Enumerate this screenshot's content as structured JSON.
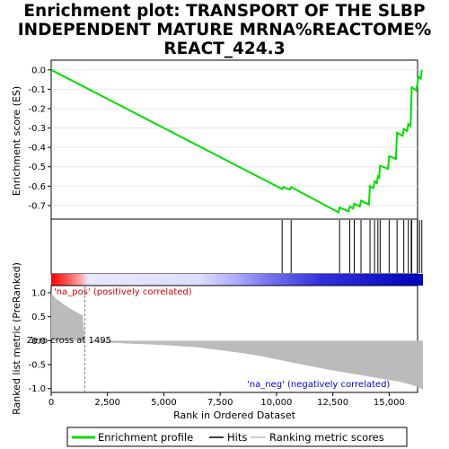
{
  "title_lines": [
    "Enrichment plot: TRANSPORT OF THE SLBP",
    "INDEPENDENT MATURE MRNA%REACTOME%",
    "REACT_424.3"
  ],
  "colors": {
    "es_line": "#00dd00",
    "hits": "#000000",
    "metric_fill": "#bbbbbb",
    "pos_text": "#cc0000",
    "neg_text": "#0000cc",
    "zero_line": "#888888"
  },
  "chart_data": {
    "type": "line",
    "title": "Enrichment plot: TRANSPORT OF THE SLBP INDEPENDENT MATURE MRNA%REACTOME% REACT_424.3",
    "xlabel": "Rank in Ordered Dataset",
    "xlim": [
      0,
      16500
    ],
    "x_ticks": [
      0,
      2500,
      5000,
      7500,
      10000,
      12500,
      15000
    ],
    "x_tick_labels": [
      "0",
      "2,500",
      "5,000",
      "7,500",
      "10,000",
      "12,500",
      "15,000"
    ],
    "es_panel": {
      "ylabel": "Enrichment score (ES)",
      "ylim": [
        -0.77,
        0.05
      ],
      "y_ticks": [
        0.0,
        -0.1,
        -0.2,
        -0.3,
        -0.4,
        -0.5,
        -0.6,
        -0.7
      ],
      "y_tick_labels": [
        "0.0",
        "-0.1",
        "-0.2",
        "-0.3",
        "-0.4",
        "-0.5",
        "-0.6",
        "-0.7"
      ],
      "points": [
        [
          0,
          0.0
        ],
        [
          10250,
          -0.615
        ],
        [
          10300,
          -0.605
        ],
        [
          10600,
          -0.617
        ],
        [
          10650,
          -0.605
        ],
        [
          12750,
          -0.735
        ],
        [
          12800,
          -0.71
        ],
        [
          13200,
          -0.73
        ],
        [
          13250,
          -0.705
        ],
        [
          13400,
          -0.715
        ],
        [
          13450,
          -0.69
        ],
        [
          13700,
          -0.705
        ],
        [
          13750,
          -0.675
        ],
        [
          14100,
          -0.695
        ],
        [
          14150,
          -0.6
        ],
        [
          14300,
          -0.61
        ],
        [
          14350,
          -0.575
        ],
        [
          14450,
          -0.585
        ],
        [
          14500,
          -0.55
        ],
        [
          14550,
          -0.555
        ],
        [
          14600,
          -0.495
        ],
        [
          14950,
          -0.51
        ],
        [
          15000,
          -0.445
        ],
        [
          15300,
          -0.46
        ],
        [
          15350,
          -0.325
        ],
        [
          15600,
          -0.34
        ],
        [
          15650,
          -0.305
        ],
        [
          15800,
          -0.315
        ],
        [
          15850,
          -0.28
        ],
        [
          15950,
          -0.29
        ],
        [
          16000,
          -0.09
        ],
        [
          16200,
          -0.105
        ],
        [
          16250,
          -0.075
        ],
        [
          16300,
          -0.035
        ],
        [
          16400,
          -0.045
        ],
        [
          16450,
          0.0
        ]
      ]
    },
    "hits": [
      10250,
      10650,
      12800,
      13250,
      13450,
      13750,
      14150,
      14350,
      14500,
      14600,
      15000,
      15350,
      15650,
      15850,
      15980,
      16000,
      16250,
      16350,
      16450
    ],
    "metric_panel": {
      "ylabel": "Ranked list metric (PreRanked)",
      "ylim": [
        -1.08,
        1.15
      ],
      "y_ticks": [
        1.0,
        0.5,
        0.0,
        -0.5,
        -1.0
      ],
      "y_tick_labels": [
        "1.0",
        "0.5",
        "0.0",
        "-0.5",
        "-1.0"
      ],
      "points": [
        [
          0,
          1.0
        ],
        [
          200,
          0.88
        ],
        [
          500,
          0.78
        ],
        [
          800,
          0.68
        ],
        [
          1100,
          0.6
        ],
        [
          1400,
          0.53
        ],
        [
          1495,
          0.0
        ],
        [
          2000,
          -0.03
        ],
        [
          3500,
          -0.06
        ],
        [
          5000,
          -0.09
        ],
        [
          6500,
          -0.14
        ],
        [
          7500,
          -0.2
        ],
        [
          8500,
          -0.26
        ],
        [
          9500,
          -0.34
        ],
        [
          10500,
          -0.44
        ],
        [
          11500,
          -0.53
        ],
        [
          12500,
          -0.62
        ],
        [
          13500,
          -0.7
        ],
        [
          14500,
          -0.78
        ],
        [
          15500,
          -0.86
        ],
        [
          16000,
          -0.92
        ],
        [
          16300,
          -0.97
        ],
        [
          16500,
          -1.02
        ]
      ],
      "zero_cross": 1495
    },
    "annotations": {
      "pos": "'na_pos' (positively correlated)",
      "neg": "'na_neg' (negatively correlated)",
      "zero": "Zero cross at 1495"
    },
    "legend": {
      "placement": "bottom",
      "entries": [
        "Enrichment profile",
        "Hits",
        "Ranking metric scores"
      ]
    }
  }
}
